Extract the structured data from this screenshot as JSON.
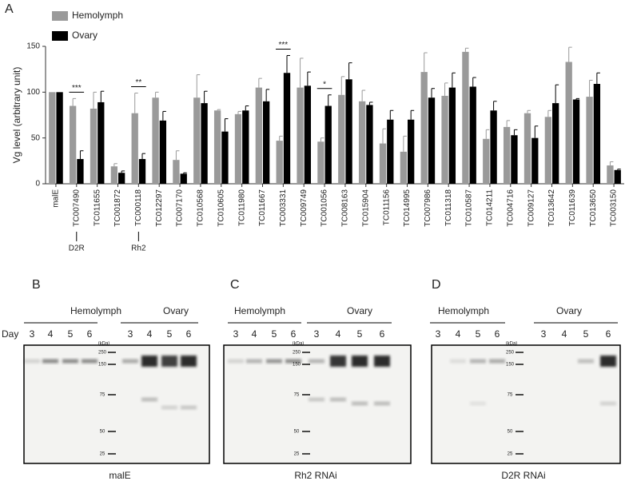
{
  "chart_data": {
    "type": "bar",
    "panel_label": "A",
    "y_label": "Vg level (arbitrary unit)",
    "categories": [
      "malE",
      "TC007490",
      "TC011655",
      "TC001872",
      "TC000118",
      "TC012297",
      "TC007170",
      "TC010568",
      "TC010605",
      "TC011980",
      "TC011667",
      "TC003331",
      "TC009749",
      "TC001056",
      "TC008163",
      "TC015904",
      "TC011156",
      "TC014995",
      "TC007986",
      "TC011318",
      "TC010587",
      "TC014211",
      "TC004716",
      "TC009127",
      "TC013642",
      "TC011639",
      "TC013650",
      "TC003150"
    ],
    "series": [
      {
        "name": "Hemolymph",
        "color": "#9a9a9a",
        "values": [
          100,
          85,
          82,
          19,
          77,
          94,
          26,
          94,
          80,
          76,
          105,
          47,
          105,
          46,
          97,
          90,
          44,
          35,
          122,
          96,
          144,
          49,
          62,
          77,
          73,
          133,
          95,
          20
        ],
        "errors": [
          null,
          8,
          18,
          3,
          22,
          6,
          10,
          25,
          1,
          3,
          10,
          5,
          32,
          4,
          20,
          12,
          16,
          17,
          21,
          14,
          4,
          10,
          7,
          3,
          7,
          16,
          18,
          4
        ]
      },
      {
        "name": "Ovary",
        "color": "#000000",
        "values": [
          100,
          27,
          89,
          12,
          27,
          69,
          11,
          88,
          57,
          80,
          90,
          121,
          107,
          85,
          114,
          86,
          70,
          70,
          94,
          105,
          106,
          80,
          53,
          50,
          88,
          92,
          109,
          15
        ],
        "errors": [
          null,
          9,
          12,
          2,
          6,
          10,
          1,
          13,
          14,
          5,
          13,
          19,
          15,
          12,
          18,
          3,
          10,
          10,
          10,
          16,
          10,
          10,
          6,
          13,
          20,
          1,
          12,
          1
        ]
      }
    ],
    "ylim": [
      0,
      150
    ],
    "yticks": [
      0,
      50,
      100,
      150
    ],
    "legend": "upper left",
    "annotations": [
      {
        "text": "***",
        "category": 1
      },
      {
        "text": "**",
        "category": 4
      },
      {
        "text": "***",
        "category": 11
      },
      {
        "text": "*",
        "category": 13
      }
    ],
    "category_notes": [
      {
        "text": "D2R",
        "category": 1
      },
      {
        "text": "Rh2",
        "category": 4
      }
    ]
  },
  "gels": [
    {
      "panel": "B",
      "groups": [
        "Hemolymph",
        "Ovary"
      ],
      "day_label": "Day",
      "hemolymph_days": [
        3,
        4,
        5,
        6
      ],
      "ovary_days": [
        3,
        4,
        5,
        6
      ],
      "marker_unit": "(kDa)",
      "markers": [
        250,
        150,
        75,
        50,
        25
      ],
      "caption": "malE"
    },
    {
      "panel": "C",
      "groups": [
        "Hemolymph",
        "Ovary"
      ],
      "day_label": "Day",
      "hemolymph_days": [
        3,
        4,
        5,
        6
      ],
      "ovary_days": [
        3,
        4,
        5,
        6
      ],
      "marker_unit": "(kDa)",
      "markers": [
        250,
        150,
        75,
        50,
        25
      ],
      "caption": "Rh2 RNAi"
    },
    {
      "panel": "D",
      "groups": [
        "Hemolymph",
        "Ovary"
      ],
      "day_label": "Day",
      "hemolymph_days": [
        3,
        4,
        5,
        6
      ],
      "ovary_days": [
        3,
        4,
        5,
        6
      ],
      "marker_unit": "(kDa)",
      "markers": [
        250,
        150,
        75,
        50,
        25
      ],
      "caption": "D2R RNAi"
    }
  ]
}
